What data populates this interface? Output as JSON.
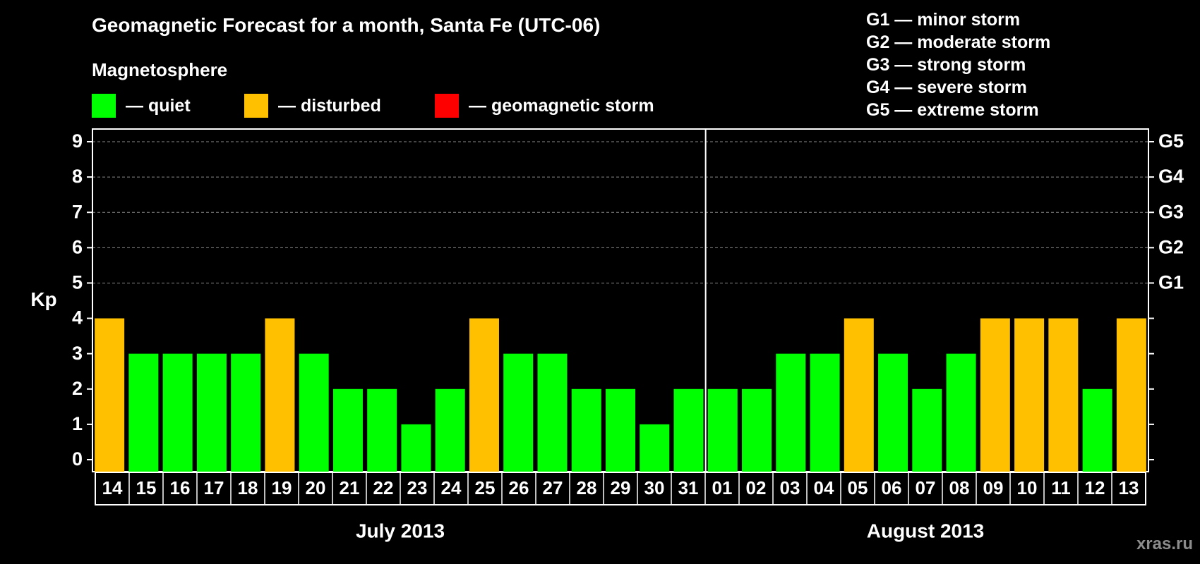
{
  "title": "Geomagnetic Forecast for a month, Santa Fe (UTC-06)",
  "subtitle": "Magnetosphere",
  "legend": [
    {
      "label": "— quiet",
      "color": "#00ff00"
    },
    {
      "label": "— disturbed",
      "color": "#ffc000"
    },
    {
      "label": "— geomagnetic storm",
      "color": "#ff0000"
    }
  ],
  "storm_levels": [
    "G1 — minor storm",
    "G2 — moderate storm",
    "G3 — strong storm",
    "G4 — severe storm",
    "G5 — extreme storm"
  ],
  "watermark": "xras.ru",
  "chart_data": {
    "type": "bar",
    "ylabel": "Kp",
    "ylim": [
      0,
      9
    ],
    "yticks": [
      "0",
      "1",
      "2",
      "3",
      "4",
      "5",
      "6",
      "7",
      "8",
      "9"
    ],
    "right_ticks": [
      {
        "value": 5,
        "label": "G1"
      },
      {
        "value": 6,
        "label": "G2"
      },
      {
        "value": 7,
        "label": "G3"
      },
      {
        "value": 8,
        "label": "G4"
      },
      {
        "value": 9,
        "label": "G5"
      }
    ],
    "grid": true,
    "categories": [
      "14",
      "15",
      "16",
      "17",
      "18",
      "19",
      "20",
      "21",
      "22",
      "23",
      "24",
      "25",
      "26",
      "27",
      "28",
      "29",
      "30",
      "31",
      "01",
      "02",
      "03",
      "04",
      "05",
      "06",
      "07",
      "08",
      "09",
      "10",
      "11",
      "12",
      "13"
    ],
    "values": [
      4,
      3,
      3,
      3,
      3,
      4,
      3,
      2,
      2,
      1,
      2,
      4,
      3,
      3,
      2,
      2,
      1,
      2,
      2,
      2,
      3,
      3,
      4,
      3,
      2,
      3,
      4,
      4,
      4,
      2,
      4
    ],
    "status": [
      "disturbed",
      "quiet",
      "quiet",
      "quiet",
      "quiet",
      "disturbed",
      "quiet",
      "quiet",
      "quiet",
      "quiet",
      "quiet",
      "disturbed",
      "quiet",
      "quiet",
      "quiet",
      "quiet",
      "quiet",
      "quiet",
      "quiet",
      "quiet",
      "quiet",
      "quiet",
      "disturbed",
      "quiet",
      "quiet",
      "quiet",
      "disturbed",
      "disturbed",
      "disturbed",
      "quiet",
      "disturbed"
    ],
    "colors": {
      "quiet": "#00ff00",
      "disturbed": "#ffc000",
      "storm": "#ff0000"
    },
    "months": [
      {
        "label": "July 2013",
        "start": 0,
        "end": 17
      },
      {
        "label": "August 2013",
        "start": 18,
        "end": 30
      }
    ]
  }
}
